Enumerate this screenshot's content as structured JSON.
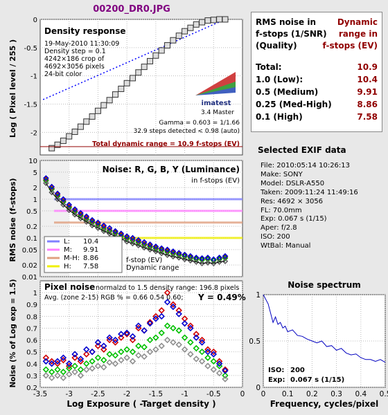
{
  "header": {
    "file_title": "00200_DR0.JPG"
  },
  "colors": {
    "title": "#800080",
    "grid": "#bbbbbb",
    "dark_red": "#900000",
    "L": "#8080ff",
    "M": "#ff80ff",
    "MH": "#e0a080",
    "H": "#f0f000"
  },
  "rms_table": {
    "header_left": "RMS noise in\nf-stops (1/SNR)\n(Quality)",
    "header_right": "Dynamic\nrange in\nf-stops (EV)",
    "rows": [
      {
        "label": "Total:",
        "value": "10.9"
      },
      {
        "label": "1.0   (Low):",
        "value": "10.4"
      },
      {
        "label": "0.5   (Medium)",
        "value": "9.91"
      },
      {
        "label": "0.25 (Med-High)",
        "value": "8.86"
      },
      {
        "label": "0.1   (High)",
        "value": "7.58"
      }
    ]
  },
  "exif": {
    "title": "Selected EXIF data",
    "lines": [
      "File:  2010:05:14 10:26:13",
      "Make:  SONY",
      "Model: DSLR-A550",
      "Taken: 2009:11:24 11:49:16",
      "Res:   4692 × 3056",
      "FL:  70.0mm",
      "Exp:  0.067 s  (1/15)",
      "Aper:  f/2.8",
      "ISO:  200",
      "WtBal: Manual"
    ]
  },
  "chart_data": [
    {
      "type": "line",
      "title": "Density response",
      "ylabel": "Log ( Pixel level / 255 )",
      "xlim": [
        -3.5,
        0
      ],
      "ylim": [
        -2.4,
        0
      ],
      "yticks": [
        -2,
        -1.5,
        -1,
        -0.5,
        0
      ],
      "info": [
        "19-May-2010 11:30:09",
        "Density step = 0.1",
        "4242×186 crop of",
        "4692×3056 pixels",
        "24-bit color"
      ],
      "logo": {
        "brand": "imatest",
        "edition": "3.4  Master"
      },
      "gamma_text": "Gamma = 0.603 = 1/1.66",
      "steps_text": "32.9 steps detected < 0.98 (auto)",
      "dr_text": "Total dynamic range = 10.9 f-stops (EV)",
      "series": [
        {
          "name": "Density response",
          "x": [
            -3.3,
            -3.2,
            -3.1,
            -3.0,
            -2.9,
            -2.8,
            -2.7,
            -2.6,
            -2.5,
            -2.4,
            -2.3,
            -2.2,
            -2.1,
            -2.0,
            -1.9,
            -1.8,
            -1.7,
            -1.6,
            -1.5,
            -1.4,
            -1.3,
            -1.2,
            -1.1,
            -1.0,
            -0.9,
            -0.8,
            -0.7,
            -0.6,
            -0.5,
            -0.4,
            -0.3
          ],
          "y": [
            -2.28,
            -2.22,
            -2.15,
            -2.07,
            -1.99,
            -1.9,
            -1.81,
            -1.72,
            -1.62,
            -1.52,
            -1.43,
            -1.33,
            -1.23,
            -1.13,
            -1.04,
            -0.94,
            -0.84,
            -0.74,
            -0.64,
            -0.55,
            -0.46,
            -0.37,
            -0.29,
            -0.21,
            -0.15,
            -0.09,
            -0.05,
            -0.02,
            -0.01,
            0.0,
            0.0
          ]
        },
        {
          "name": "fit",
          "x": [
            -3.45,
            -0.3
          ],
          "y": [
            -1.42,
            0.0
          ]
        }
      ]
    },
    {
      "type": "line",
      "title": "Noise: R, G, B, Y (Luminance)",
      "subtitle": "in f-stops (EV)",
      "ylabel": "RMS noise (f-stops)",
      "yscale": "log",
      "ylim": [
        0.01,
        10
      ],
      "ytick_labels": [
        "10",
        "5",
        "2",
        "1",
        "0.5",
        "0.2",
        "0.1",
        "0.05",
        "0.02",
        "0.01"
      ],
      "ytick_values": [
        10,
        5,
        2,
        1,
        0.5,
        0.2,
        0.1,
        0.05,
        0.02,
        0.01
      ],
      "thresholds": [
        {
          "label": "L:",
          "noise": 1.0,
          "dr": "10.4"
        },
        {
          "label": "M:",
          "noise": 0.5,
          "dr": "9.91"
        },
        {
          "label": "M-H:",
          "noise": 0.25,
          "dr": "8.86"
        },
        {
          "label": "H:",
          "noise": 0.1,
          "dr": "7.58"
        }
      ],
      "fstop_label": "f-stop (EV)",
      "dr_label": "Dynamic range",
      "x": [
        -3.4,
        -3.3,
        -3.2,
        -3.1,
        -3.0,
        -2.9,
        -2.8,
        -2.7,
        -2.6,
        -2.5,
        -2.4,
        -2.3,
        -2.2,
        -2.1,
        -2.0,
        -1.9,
        -1.8,
        -1.7,
        -1.6,
        -1.5,
        -1.4,
        -1.3,
        -1.2,
        -1.1,
        -1.0,
        -0.9,
        -0.8,
        -0.7,
        -0.6,
        -0.5,
        -0.4,
        -0.3
      ],
      "series": [
        {
          "name": "R",
          "values": [
            3.2,
            1.9,
            1.3,
            0.9,
            0.65,
            0.5,
            0.4,
            0.33,
            0.27,
            0.23,
            0.19,
            0.16,
            0.14,
            0.12,
            0.1,
            0.09,
            0.08,
            0.07,
            0.062,
            0.055,
            0.05,
            0.046,
            0.042,
            0.038,
            0.035,
            0.032,
            0.03,
            0.028,
            0.03,
            0.027,
            0.03,
            0.032
          ]
        },
        {
          "name": "G",
          "values": [
            3.0,
            1.8,
            1.2,
            0.85,
            0.6,
            0.47,
            0.37,
            0.3,
            0.25,
            0.21,
            0.17,
            0.15,
            0.13,
            0.11,
            0.095,
            0.085,
            0.075,
            0.066,
            0.058,
            0.052,
            0.047,
            0.043,
            0.039,
            0.036,
            0.033,
            0.03,
            0.028,
            0.027,
            0.028,
            0.026,
            0.028,
            0.03
          ]
        },
        {
          "name": "B",
          "values": [
            3.5,
            2.1,
            1.4,
            1.0,
            0.72,
            0.55,
            0.44,
            0.36,
            0.29,
            0.25,
            0.21,
            0.18,
            0.15,
            0.13,
            0.11,
            0.1,
            0.088,
            0.078,
            0.068,
            0.06,
            0.054,
            0.05,
            0.045,
            0.041,
            0.037,
            0.034,
            0.031,
            0.03,
            0.031,
            0.028,
            0.031,
            0.034
          ]
        },
        {
          "name": "Y",
          "values": [
            2.6,
            1.5,
            1.0,
            0.72,
            0.52,
            0.4,
            0.32,
            0.26,
            0.21,
            0.18,
            0.15,
            0.13,
            0.11,
            0.095,
            0.08,
            0.072,
            0.064,
            0.056,
            0.05,
            0.045,
            0.04,
            0.036,
            0.033,
            0.031,
            0.028,
            0.026,
            0.024,
            0.022,
            0.023,
            0.022,
            0.024,
            0.025
          ]
        }
      ]
    },
    {
      "type": "line",
      "title": "Pixel noise",
      "title_note": "normalzd to 1.5 density range: 196.8 pixels",
      "avg_text": "Avg. (zone 2-15) RGB % = 0.66  0.54  0.60;",
      "y_text": "Y = 0.49%",
      "xlabel": "Log Exposure ( -Target density )",
      "ylabel": "Noise (% of Log exp = 1.5)",
      "xlim": [
        -3.5,
        0
      ],
      "ylim": [
        0.2,
        1.1
      ],
      "xticks": [
        -3.5,
        -3,
        -2.5,
        -2,
        -1.5,
        -1,
        -0.5,
        0
      ],
      "yticks": [
        0.2,
        0.3,
        0.4,
        0.5,
        0.6,
        0.7,
        0.8,
        0.9,
        1
      ],
      "x": [
        -3.4,
        -3.3,
        -3.2,
        -3.1,
        -3.0,
        -2.9,
        -2.8,
        -2.7,
        -2.6,
        -2.5,
        -2.4,
        -2.3,
        -2.2,
        -2.1,
        -2.0,
        -1.9,
        -1.8,
        -1.7,
        -1.6,
        -1.5,
        -1.4,
        -1.3,
        -1.2,
        -1.1,
        -1.0,
        -0.9,
        -0.8,
        -0.7,
        -0.6,
        -0.5,
        -0.4,
        -0.3
      ],
      "series": [
        {
          "name": "R",
          "values": [
            0.45,
            0.42,
            0.4,
            0.43,
            0.38,
            0.45,
            0.42,
            0.48,
            0.5,
            0.55,
            0.52,
            0.6,
            0.58,
            0.62,
            0.65,
            0.6,
            0.7,
            0.68,
            0.75,
            0.8,
            0.85,
            1.0,
            0.9,
            0.85,
            0.78,
            0.72,
            0.65,
            0.6,
            0.52,
            0.5,
            0.42,
            0.35
          ]
        },
        {
          "name": "G",
          "values": [
            0.35,
            0.33,
            0.35,
            0.33,
            0.36,
            0.38,
            0.35,
            0.4,
            0.42,
            0.45,
            0.43,
            0.48,
            0.47,
            0.5,
            0.52,
            0.5,
            0.55,
            0.54,
            0.6,
            0.62,
            0.66,
            0.72,
            0.7,
            0.68,
            0.62,
            0.58,
            0.53,
            0.5,
            0.45,
            0.42,
            0.38,
            0.3
          ]
        },
        {
          "name": "B",
          "values": [
            0.42,
            0.4,
            0.42,
            0.45,
            0.4,
            0.48,
            0.44,
            0.52,
            0.5,
            0.58,
            0.55,
            0.62,
            0.6,
            0.65,
            0.66,
            0.63,
            0.72,
            0.68,
            0.74,
            0.78,
            0.8,
            0.92,
            0.88,
            0.82,
            0.74,
            0.7,
            0.62,
            0.58,
            0.5,
            0.48,
            0.4,
            0.34
          ]
        },
        {
          "name": "Y",
          "values": [
            0.3,
            0.28,
            0.3,
            0.28,
            0.31,
            0.33,
            0.3,
            0.35,
            0.36,
            0.38,
            0.37,
            0.41,
            0.4,
            0.43,
            0.45,
            0.42,
            0.47,
            0.46,
            0.5,
            0.52,
            0.55,
            0.6,
            0.58,
            0.56,
            0.52,
            0.48,
            0.44,
            0.42,
            0.38,
            0.35,
            0.32,
            0.27
          ]
        }
      ]
    },
    {
      "type": "line",
      "title": "Noise spectrum",
      "xlabel": "Frequency, cycles/pixel",
      "xlim": [
        0,
        0.5
      ],
      "ylim": [
        0,
        1
      ],
      "xticks": [
        0,
        0.1,
        0.2,
        0.3,
        0.4,
        0.5
      ],
      "yticks": [
        0,
        0.5,
        1
      ],
      "iso_label": "ISO:",
      "iso": "200",
      "exp_label": "Exp:",
      "exp": "0.067 s  (1/15)",
      "x": [
        0,
        0.01,
        0.02,
        0.03,
        0.04,
        0.05,
        0.06,
        0.07,
        0.08,
        0.09,
        0.1,
        0.12,
        0.14,
        0.16,
        0.18,
        0.2,
        0.22,
        0.24,
        0.26,
        0.28,
        0.3,
        0.32,
        0.34,
        0.36,
        0.38,
        0.4,
        0.42,
        0.44,
        0.46,
        0.48,
        0.5
      ],
      "values": [
        1.0,
        0.95,
        0.9,
        0.8,
        0.7,
        0.76,
        0.68,
        0.7,
        0.64,
        0.66,
        0.6,
        0.62,
        0.56,
        0.55,
        0.52,
        0.5,
        0.48,
        0.5,
        0.44,
        0.45,
        0.4,
        0.42,
        0.37,
        0.35,
        0.36,
        0.32,
        0.3,
        0.3,
        0.28,
        0.3,
        0.27
      ]
    }
  ]
}
